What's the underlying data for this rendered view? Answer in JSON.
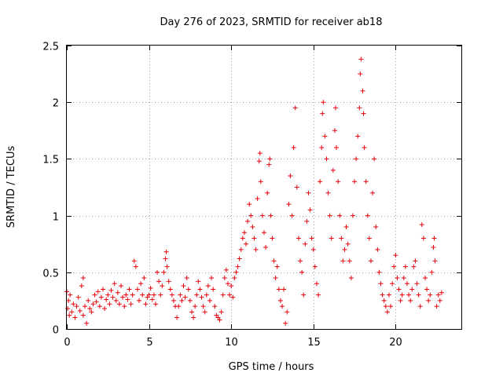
{
  "chart_data": {
    "type": "scatter",
    "title": "Day 276 of 2023, SRMTID for receiver ab18",
    "xlabel": "GPS time / hours",
    "ylabel": "SRMTID / TECUs",
    "xlim": [
      0,
      24
    ],
    "ylim": [
      0,
      2.5
    ],
    "xticks": [
      0,
      5,
      10,
      15,
      20
    ],
    "xtick_labels": [
      "0",
      "5",
      "10",
      "15",
      "20"
    ],
    "yticks": [
      0,
      0.5,
      1,
      1.5,
      2,
      2.5
    ],
    "ytick_labels": [
      "0",
      "0.5",
      "1",
      "1.5",
      "2",
      "2.5"
    ],
    "grid": true,
    "marker": "plus",
    "color": "#e8000b",
    "series": [
      {
        "name": "SRMTID",
        "points": [
          [
            0.0,
            0.33
          ],
          [
            0.05,
            0.18
          ],
          [
            0.1,
            0.25
          ],
          [
            0.15,
            0.12
          ],
          [
            0.2,
            0.3
          ],
          [
            0.3,
            0.15
          ],
          [
            0.4,
            0.22
          ],
          [
            0.5,
            0.1
          ],
          [
            0.6,
            0.2
          ],
          [
            0.7,
            0.28
          ],
          [
            0.8,
            0.16
          ],
          [
            0.9,
            0.38
          ],
          [
            1.0,
            0.45
          ],
          [
            1.0,
            0.12
          ],
          [
            1.1,
            0.2
          ],
          [
            1.2,
            0.05
          ],
          [
            1.3,
            0.25
          ],
          [
            1.4,
            0.18
          ],
          [
            1.5,
            0.15
          ],
          [
            1.6,
            0.22
          ],
          [
            1.7,
            0.3
          ],
          [
            1.8,
            0.24
          ],
          [
            1.9,
            0.33
          ],
          [
            2.0,
            0.2
          ],
          [
            2.1,
            0.28
          ],
          [
            2.2,
            0.35
          ],
          [
            2.3,
            0.18
          ],
          [
            2.4,
            0.26
          ],
          [
            2.5,
            0.3
          ],
          [
            2.6,
            0.22
          ],
          [
            2.7,
            0.34
          ],
          [
            2.8,
            0.28
          ],
          [
            2.9,
            0.4
          ],
          [
            3.0,
            0.25
          ],
          [
            3.1,
            0.32
          ],
          [
            3.2,
            0.22
          ],
          [
            3.3,
            0.38
          ],
          [
            3.4,
            0.28
          ],
          [
            3.5,
            0.2
          ],
          [
            3.6,
            0.3
          ],
          [
            3.7,
            0.26
          ],
          [
            3.8,
            0.35
          ],
          [
            3.9,
            0.22
          ],
          [
            4.0,
            0.3
          ],
          [
            4.1,
            0.6
          ],
          [
            4.2,
            0.55
          ],
          [
            4.3,
            0.35
          ],
          [
            4.4,
            0.25
          ],
          [
            4.5,
            0.4
          ],
          [
            4.6,
            0.3
          ],
          [
            4.7,
            0.45
          ],
          [
            4.8,
            0.22
          ],
          [
            4.9,
            0.28
          ],
          [
            5.0,
            0.3
          ],
          [
            5.1,
            0.36
          ],
          [
            5.2,
            0.26
          ],
          [
            5.3,
            0.3
          ],
          [
            5.4,
            0.22
          ],
          [
            5.5,
            0.5
          ],
          [
            5.6,
            0.42
          ],
          [
            5.7,
            0.3
          ],
          [
            5.8,
            0.38
          ],
          [
            5.9,
            0.5
          ],
          [
            6.0,
            0.62
          ],
          [
            6.05,
            0.68
          ],
          [
            6.1,
            0.55
          ],
          [
            6.2,
            0.42
          ],
          [
            6.3,
            0.35
          ],
          [
            6.4,
            0.3
          ],
          [
            6.5,
            0.25
          ],
          [
            6.6,
            0.2
          ],
          [
            6.7,
            0.1
          ],
          [
            6.8,
            0.2
          ],
          [
            6.9,
            0.3
          ],
          [
            7.0,
            0.25
          ],
          [
            7.1,
            0.38
          ],
          [
            7.2,
            0.28
          ],
          [
            7.3,
            0.45
          ],
          [
            7.4,
            0.35
          ],
          [
            7.5,
            0.25
          ],
          [
            7.6,
            0.15
          ],
          [
            7.7,
            0.1
          ],
          [
            7.8,
            0.2
          ],
          [
            7.9,
            0.3
          ],
          [
            8.0,
            0.42
          ],
          [
            8.1,
            0.35
          ],
          [
            8.2,
            0.28
          ],
          [
            8.3,
            0.2
          ],
          [
            8.4,
            0.15
          ],
          [
            8.5,
            0.3
          ],
          [
            8.6,
            0.38
          ],
          [
            8.7,
            0.25
          ],
          [
            8.8,
            0.45
          ],
          [
            8.9,
            0.35
          ],
          [
            9.0,
            0.2
          ],
          [
            9.1,
            0.12
          ],
          [
            9.2,
            0.1
          ],
          [
            9.3,
            0.08
          ],
          [
            9.4,
            0.15
          ],
          [
            9.5,
            0.3
          ],
          [
            9.6,
            0.45
          ],
          [
            9.7,
            0.52
          ],
          [
            9.8,
            0.4
          ],
          [
            9.9,
            0.3
          ],
          [
            10.0,
            0.38
          ],
          [
            10.1,
            0.28
          ],
          [
            10.2,
            0.45
          ],
          [
            10.3,
            0.5
          ],
          [
            10.4,
            0.55
          ],
          [
            10.5,
            0.62
          ],
          [
            10.6,
            0.7
          ],
          [
            10.7,
            0.8
          ],
          [
            10.8,
            0.85
          ],
          [
            10.9,
            0.75
          ],
          [
            11.0,
            0.95
          ],
          [
            11.1,
            1.1
          ],
          [
            11.2,
            1.0
          ],
          [
            11.3,
            0.9
          ],
          [
            11.4,
            0.8
          ],
          [
            11.5,
            0.7
          ],
          [
            11.6,
            1.15
          ],
          [
            11.7,
            1.48
          ],
          [
            11.75,
            1.55
          ],
          [
            11.8,
            1.3
          ],
          [
            11.9,
            1.0
          ],
          [
            12.0,
            0.85
          ],
          [
            12.1,
            0.72
          ],
          [
            12.2,
            1.2
          ],
          [
            12.3,
            1.45
          ],
          [
            12.35,
            1.5
          ],
          [
            12.4,
            1.0
          ],
          [
            12.5,
            0.8
          ],
          [
            12.6,
            0.6
          ],
          [
            12.7,
            0.45
          ],
          [
            12.8,
            0.55
          ],
          [
            12.9,
            0.35
          ],
          [
            13.0,
            0.25
          ],
          [
            13.1,
            0.2
          ],
          [
            13.2,
            0.35
          ],
          [
            13.3,
            0.05
          ],
          [
            13.4,
            0.15
          ],
          [
            13.5,
            1.1
          ],
          [
            13.6,
            1.35
          ],
          [
            13.7,
            1.0
          ],
          [
            13.8,
            1.6
          ],
          [
            13.9,
            1.95
          ],
          [
            14.0,
            1.25
          ],
          [
            14.1,
            0.8
          ],
          [
            14.2,
            0.6
          ],
          [
            14.3,
            0.5
          ],
          [
            14.4,
            0.3
          ],
          [
            14.5,
            0.75
          ],
          [
            14.6,
            0.95
          ],
          [
            14.7,
            1.2
          ],
          [
            14.8,
            1.05
          ],
          [
            14.9,
            0.8
          ],
          [
            15.0,
            0.7
          ],
          [
            15.1,
            0.55
          ],
          [
            15.2,
            0.4
          ],
          [
            15.3,
            0.3
          ],
          [
            15.4,
            1.3
          ],
          [
            15.5,
            1.6
          ],
          [
            15.55,
            1.9
          ],
          [
            15.6,
            2.0
          ],
          [
            15.7,
            1.7
          ],
          [
            15.8,
            1.5
          ],
          [
            15.9,
            1.2
          ],
          [
            16.0,
            1.0
          ],
          [
            16.1,
            0.8
          ],
          [
            16.2,
            1.4
          ],
          [
            16.3,
            1.75
          ],
          [
            16.35,
            1.95
          ],
          [
            16.4,
            1.6
          ],
          [
            16.5,
            1.3
          ],
          [
            16.6,
            1.0
          ],
          [
            16.7,
            0.8
          ],
          [
            16.8,
            0.6
          ],
          [
            16.9,
            0.7
          ],
          [
            17.0,
            0.9
          ],
          [
            17.1,
            0.75
          ],
          [
            17.2,
            0.6
          ],
          [
            17.3,
            0.45
          ],
          [
            17.4,
            1.0
          ],
          [
            17.5,
            1.3
          ],
          [
            17.6,
            1.5
          ],
          [
            17.7,
            1.7
          ],
          [
            17.8,
            1.95
          ],
          [
            17.85,
            2.25
          ],
          [
            17.9,
            2.38
          ],
          [
            18.0,
            2.1
          ],
          [
            18.05,
            1.9
          ],
          [
            18.1,
            1.6
          ],
          [
            18.2,
            1.3
          ],
          [
            18.3,
            1.0
          ],
          [
            18.4,
            0.8
          ],
          [
            18.5,
            0.6
          ],
          [
            18.6,
            1.2
          ],
          [
            18.7,
            1.5
          ],
          [
            18.8,
            0.9
          ],
          [
            18.9,
            0.7
          ],
          [
            19.0,
            0.5
          ],
          [
            19.1,
            0.4
          ],
          [
            19.2,
            0.3
          ],
          [
            19.3,
            0.25
          ],
          [
            19.4,
            0.2
          ],
          [
            19.5,
            0.15
          ],
          [
            19.6,
            0.3
          ],
          [
            19.7,
            0.2
          ],
          [
            19.8,
            0.4
          ],
          [
            19.9,
            0.55
          ],
          [
            20.0,
            0.65
          ],
          [
            20.1,
            0.45
          ],
          [
            20.2,
            0.35
          ],
          [
            20.3,
            0.25
          ],
          [
            20.4,
            0.3
          ],
          [
            20.5,
            0.45
          ],
          [
            20.6,
            0.55
          ],
          [
            20.7,
            0.4
          ],
          [
            20.8,
            0.3
          ],
          [
            20.9,
            0.25
          ],
          [
            21.0,
            0.35
          ],
          [
            21.1,
            0.55
          ],
          [
            21.2,
            0.6
          ],
          [
            21.3,
            0.4
          ],
          [
            21.4,
            0.3
          ],
          [
            21.5,
            0.2
          ],
          [
            21.6,
            0.92
          ],
          [
            21.7,
            0.8
          ],
          [
            21.8,
            0.45
          ],
          [
            21.9,
            0.35
          ],
          [
            22.0,
            0.25
          ],
          [
            22.1,
            0.3
          ],
          [
            22.2,
            0.5
          ],
          [
            22.3,
            0.72
          ],
          [
            22.35,
            0.8
          ],
          [
            22.4,
            0.6
          ],
          [
            22.5,
            0.2
          ],
          [
            22.6,
            0.3
          ],
          [
            22.7,
            0.25
          ],
          [
            22.8,
            0.32
          ]
        ]
      }
    ]
  }
}
